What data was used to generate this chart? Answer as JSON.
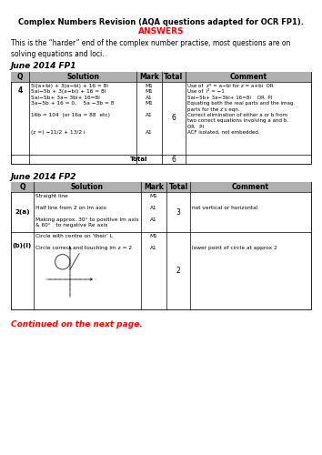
{
  "title": "Complex Numbers Revision (AQA questions adapted for OCR FP1).",
  "subtitle": "ANSWERS",
  "intro": "This is the “harder” end of the complex number practise, most questions are on\nsolving equations and loci.",
  "section1": "June 2014 FP1",
  "section2": "June 2014 FP2",
  "continued": "Continued on the next page.",
  "table1_headers": [
    "Q",
    "Solution",
    "Mark",
    "Total",
    "Comment"
  ],
  "table1_sol": "5i(a+bi) + 3(a−bi) + 16 = 8i\n5ai−5b + 3(a−bi) + 16 = 8i\n5ai−5b+ 3a− 3bi+ 16=8i\n3a−5b + 16 = 0,    5a −3b = 8\n\n16b = 104  (or 16a = 88  etc)\n\n\n(z =) −11/2 + 13/2 i",
  "table1_mark": "M1\nM1\nA1\nM1\n\nA1\n\n\nA1",
  "table1_total": "6",
  "table1_comment": "Use of  z* = a−bi for z = a+bi  OR\nUse of  i² = −1\n5ai−5b+ 3a−3bi+ 16=8i    OR  PI\nEquating both the real parts and the imag.\nparts for the z’s eqn.\nCorrect elimination of either a or b from\ntwo correct equations involving a and b.\nOR   PI\nACF isolated, not embedded.",
  "table2_headers": [
    "Q",
    "Solution",
    "Mark",
    "Total",
    "Comment"
  ],
  "t2r1_q": "2(a)",
  "t2r1_sol": "Straight line\n\nHalf line from 2 on Im axis\n\nMaking approx. 30° to positive Im axis\n& 60°   to negative Re axis",
  "t2r1_mark": "M1\n\nA1\n\nA1",
  "t2r1_total": "3",
  "t2r1_comment": "\n\nnot vertical or horizontal",
  "t2r2_q": "(b)(i)",
  "t2r2_sol": "Circle with centre on ‘their’ L\n\nCircle correct and touching Im z = 2",
  "t2r2_mark": "M1\n\nA1",
  "t2r2_total": "2",
  "t2r2_comment": "\n\nlower point of circle at approx 2",
  "bg_color": "#ffffff",
  "title_color": "#000000",
  "subtitle_color": "#ff0000",
  "continued_color": "#ff0000",
  "header_bg": "#b0b0b0"
}
